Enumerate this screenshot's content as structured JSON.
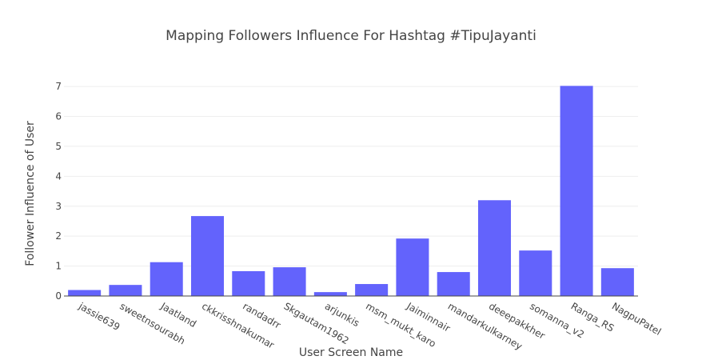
{
  "chart_data": {
    "type": "bar",
    "title": "Mapping Followers Influence For Hashtag #TipuJayanti",
    "xlabel": "User Screen Name",
    "ylabel": "Follower Influence of User",
    "categories": [
      "jassie639",
      "sweetnsourabh",
      "Jaatland",
      "ckkrisshnakumar",
      "randadrr",
      "Skgautam1962",
      "arjunkis",
      "msm_mukt_karo",
      "Jaiminnair",
      "mandarkulkarney",
      "deeepakkher",
      "somanna_v2",
      "Ranga_RS",
      "NagpuPatel"
    ],
    "values": [
      0.2,
      0.37,
      1.13,
      2.67,
      0.83,
      0.96,
      0.13,
      0.4,
      1.92,
      0.8,
      3.2,
      1.52,
      7.02,
      0.93
    ],
    "ylim": [
      0,
      7.35
    ],
    "yticks": [
      0,
      1,
      2,
      3,
      4,
      5,
      6,
      7
    ],
    "grid": true,
    "bar_color": "#6363fc",
    "axis_color": "#444444",
    "grid_color": "#eeeeee"
  }
}
